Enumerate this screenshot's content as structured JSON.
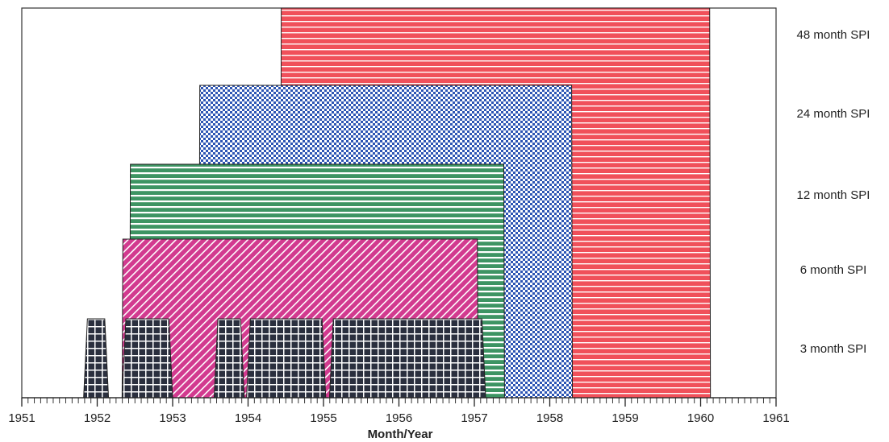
{
  "chart_data": {
    "type": "area",
    "xlabel": "Month/Year",
    "xlim": [
      1951,
      1961
    ],
    "x_ticks": [
      "1951",
      "1952",
      "1953",
      "1954",
      "1955",
      "1956",
      "1957",
      "1958",
      "1959",
      "1960",
      "1961"
    ],
    "grid": false,
    "legend": "right-side row labels",
    "series": [
      {
        "name": "48 month SPI",
        "color": "#f0505a",
        "pattern": "horizontal-lines",
        "level": 5,
        "periods": [
          {
            "start": 1954.43,
            "end": 1960.13
          }
        ]
      },
      {
        "name": "24 month SPI",
        "color": "#2d55b4",
        "pattern": "checker",
        "level": 4,
        "periods": [
          {
            "start": 1953.35,
            "end": 1958.3
          }
        ]
      },
      {
        "name": "12 month SPI",
        "color": "#3d9463",
        "pattern": "horizontal-lines",
        "level": 3,
        "periods": [
          {
            "start": 1952.43,
            "end": 1957.4
          }
        ]
      },
      {
        "name": "6 month SPI",
        "color": "#d23a8f",
        "pattern": "diagonal-lines",
        "level": 2,
        "periods": [
          {
            "start": 1952.33,
            "end": 1957.05
          }
        ]
      },
      {
        "name": "3 month SPI",
        "color": "#2a2f3e",
        "pattern": "grid",
        "level": 1,
        "periods": [
          {
            "start": 1951.82,
            "end": 1952.15
          },
          {
            "start": 1952.33,
            "end": 1953.0
          },
          {
            "start": 1953.55,
            "end": 1953.95
          },
          {
            "start": 1953.98,
            "end": 1955.03
          },
          {
            "start": 1955.08,
            "end": 1957.15
          }
        ]
      }
    ]
  }
}
